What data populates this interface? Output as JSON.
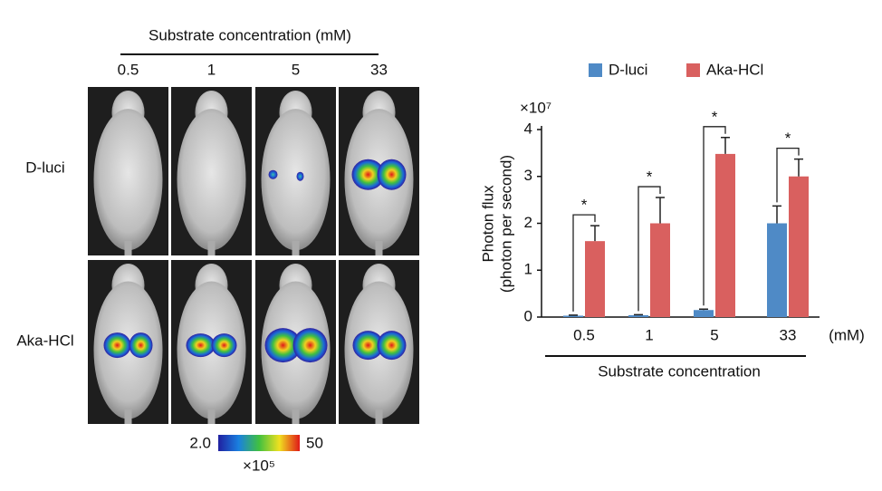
{
  "imaging": {
    "title": "Substrate concentration (mM)",
    "columns": [
      "0.5",
      "1",
      "5",
      "33"
    ],
    "rows": [
      "D-luci",
      "Aka-HCl"
    ],
    "colorbar": {
      "min_label": "2.0",
      "max_label": "50",
      "unit": "×10⁵"
    }
  },
  "chart_data": {
    "type": "bar",
    "categories": [
      "0.5",
      "1",
      "5",
      "33"
    ],
    "x_unit": "(mM)",
    "xlabel": "Substrate concentration",
    "ylabel": [
      "Photon flux",
      "(photon per second)"
    ],
    "y_multiplier": "×10⁷",
    "ylim": [
      0,
      4
    ],
    "yticks": [
      0,
      1,
      2,
      3,
      4
    ],
    "series": [
      {
        "name": "D-luci",
        "color": "#4f8ac6",
        "values": [
          0.03,
          0.04,
          0.15,
          2.0
        ],
        "errors": [
          0.01,
          0.01,
          0.02,
          0.37
        ]
      },
      {
        "name": "Aka-HCl",
        "color": "#d9605f",
        "values": [
          1.62,
          2.0,
          3.48,
          3.0
        ],
        "errors": [
          0.33,
          0.55,
          0.35,
          0.37
        ]
      }
    ],
    "annotations": [
      "*",
      "*",
      "*",
      "*"
    ]
  }
}
